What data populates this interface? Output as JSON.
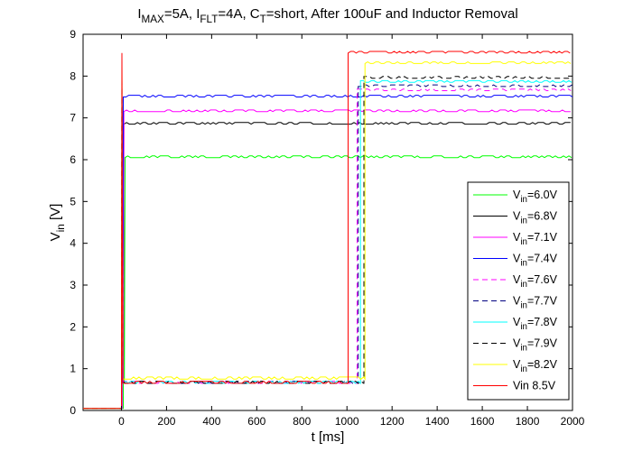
{
  "chart_data": {
    "type": "line",
    "title_parts": [
      {
        "t": "I",
        "sub": false
      },
      {
        "t": "MAX",
        "sub": true
      },
      {
        "t": "=5A, I",
        "sub": false
      },
      {
        "t": "FLT",
        "sub": true
      },
      {
        "t": "=4A, C",
        "sub": false
      },
      {
        "t": "T",
        "sub": true
      },
      {
        "t": "=short, After 100uF and Inductor Removal",
        "sub": false
      }
    ],
    "xlabel": "t [ms]",
    "ylabel_main": "V",
    "ylabel_sub": "in",
    "ylabel_unit": " [V]",
    "xlim": [
      -170,
      2000
    ],
    "ylim": [
      0,
      9
    ],
    "xticks": [
      0,
      200,
      400,
      600,
      800,
      1000,
      1200,
      1400,
      1600,
      1800,
      2000
    ],
    "yticks": [
      0,
      1,
      2,
      3,
      4,
      5,
      6,
      7,
      8,
      9
    ],
    "grid": false,
    "legend_position": "bottom-right",
    "series": [
      {
        "name": "V=6.0V",
        "name_parts": [
          {
            "t": "V",
            "sub": false
          },
          {
            "t": "in",
            "sub": true
          },
          {
            "t": "=6.0V",
            "sub": false
          }
        ],
        "color": "#00ff00",
        "dash": "solid",
        "initial": 0.05,
        "trough": 0.65,
        "final": 6.05,
        "t_rise": 10,
        "t_step": null
      },
      {
        "name": "V=6.8V",
        "name_parts": [
          {
            "t": "V",
            "sub": false
          },
          {
            "t": "in",
            "sub": true
          },
          {
            "t": "=6.8V",
            "sub": false
          }
        ],
        "color": "#000000",
        "dash": "solid",
        "initial": 0.05,
        "trough": 0.65,
        "final": 6.85,
        "t_rise": 5,
        "t_step": null
      },
      {
        "name": "V=7.1V",
        "name_parts": [
          {
            "t": "V",
            "sub": false
          },
          {
            "t": "in",
            "sub": true
          },
          {
            "t": "=7.1V",
            "sub": false
          }
        ],
        "color": "#ff00ff",
        "dash": "solid",
        "initial": 0.05,
        "trough": 0.65,
        "final": 7.15,
        "t_rise": 5,
        "t_step": null
      },
      {
        "name": "V=7.4V",
        "name_parts": [
          {
            "t": "V",
            "sub": false
          },
          {
            "t": "in",
            "sub": true
          },
          {
            "t": "=7.4V",
            "sub": false
          }
        ],
        "color": "#0000ff",
        "dash": "solid",
        "initial": 0.05,
        "trough": 0.65,
        "final": 7.5,
        "t_rise": 2,
        "t_step": null
      },
      {
        "name": "V=7.6V",
        "name_parts": [
          {
            "t": "V",
            "sub": false
          },
          {
            "t": "in",
            "sub": true
          },
          {
            "t": "=7.6V",
            "sub": false
          }
        ],
        "color": "#ff00ff",
        "dash": "dashed",
        "initial": 0.05,
        "trough": 0.65,
        "final": 7.65,
        "t_rise": 2,
        "t_step": 1045
      },
      {
        "name": "V=7.7V",
        "name_parts": [
          {
            "t": "V",
            "sub": false
          },
          {
            "t": "in",
            "sub": true
          },
          {
            "t": "=7.7V",
            "sub": false
          }
        ],
        "color": "#000080",
        "dash": "dashed",
        "initial": 0.05,
        "trough": 0.65,
        "final": 7.75,
        "t_rise": 2,
        "t_step": 1050
      },
      {
        "name": "V=7.8V",
        "name_parts": [
          {
            "t": "V",
            "sub": false
          },
          {
            "t": "in",
            "sub": true
          },
          {
            "t": "=7.8V",
            "sub": false
          }
        ],
        "color": "#00ffff",
        "dash": "solid",
        "initial": 0.05,
        "trough": 0.65,
        "final": 7.85,
        "t_rise": 2,
        "t_step": 1060
      },
      {
        "name": "V=7.9V",
        "name_parts": [
          {
            "t": "V",
            "sub": false
          },
          {
            "t": "in",
            "sub": true
          },
          {
            "t": "=7.9V",
            "sub": false
          }
        ],
        "color": "#000000",
        "dash": "dashed",
        "initial": 0.05,
        "trough": 0.65,
        "final": 7.95,
        "t_rise": 2,
        "t_step": 1075
      },
      {
        "name": "V=8.2V",
        "name_parts": [
          {
            "t": "V",
            "sub": false
          },
          {
            "t": "in",
            "sub": true
          },
          {
            "t": "=8.2V",
            "sub": false
          }
        ],
        "color": "#ffff00",
        "dash": "solid",
        "initial": 0.05,
        "trough": 0.75,
        "final": 8.3,
        "t_rise": 2,
        "t_step": 1080
      },
      {
        "name": "Vin 8.5V",
        "name_parts": [
          {
            "t": "Vin 8.5V",
            "sub": false
          }
        ],
        "color": "#ff0000",
        "dash": "solid",
        "initial": 0.05,
        "trough": 0.65,
        "final": 8.55,
        "t_rise": 2,
        "t_step": 1005
      }
    ]
  }
}
